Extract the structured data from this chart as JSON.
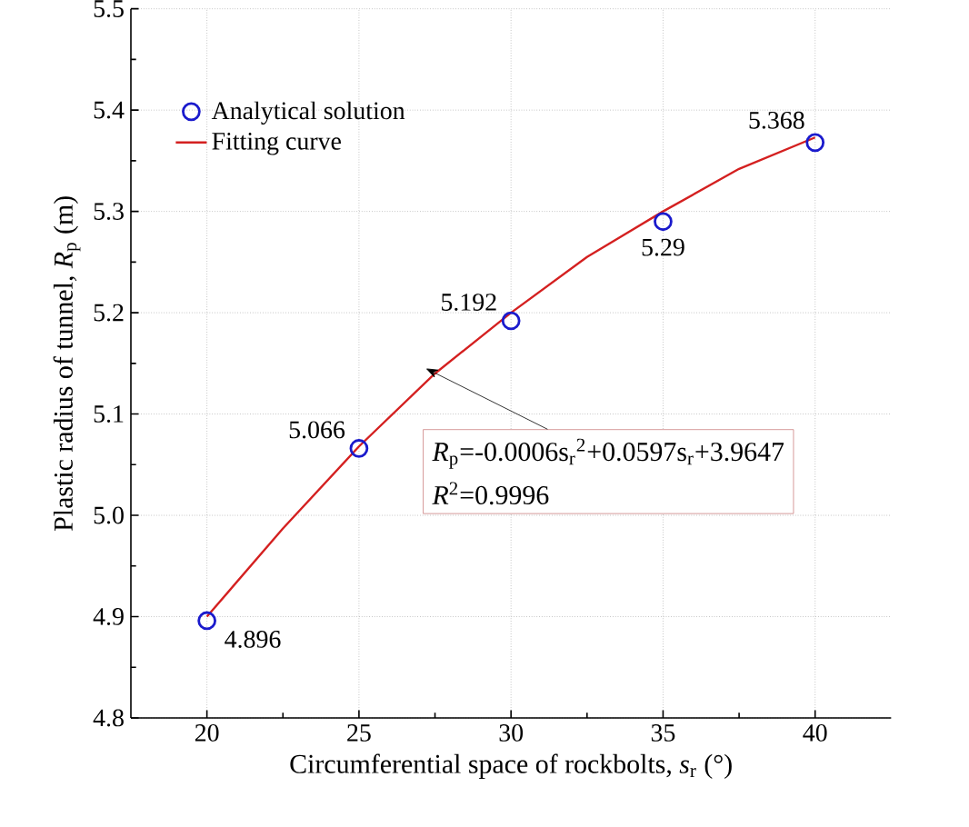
{
  "chart_data": {
    "type": "scatter",
    "xlabel": "Circumferential space of rockbolts, *s*$_{r}$ (°)",
    "ylabel": "Plastic radius of tunnel, *R*$_{p}$ (m)",
    "xlim": [
      17.5,
      42.5
    ],
    "xticks": [
      20,
      25,
      30,
      35,
      40
    ],
    "ylim": [
      4.8,
      5.5
    ],
    "yticks": [
      4.8,
      4.9,
      {
        "value": 5.0,
        "label": "5.0"
      },
      5.1,
      5.2,
      5.3,
      5.4,
      5.5
    ],
    "grid": true,
    "legend": "top left",
    "series": [
      {
        "name": "Analytical solution",
        "type": "scatter",
        "marker": "circle",
        "color": "#1a1acc",
        "x": [
          20,
          25,
          30,
          35,
          40
        ],
        "values": [
          4.896,
          5.066,
          5.192,
          5.29,
          5.368
        ],
        "data_labels": true
      },
      {
        "name": "Fitting curve",
        "type": "line",
        "marker": "none",
        "line_style": "solid",
        "color": "#d42020",
        "x": [
          20,
          22.5,
          25,
          27.5,
          30,
          32.5,
          35,
          37.5,
          40
        ],
        "values": [
          4.9,
          4.987,
          5.068,
          5.14,
          5.2,
          5.255,
          5.3,
          5.342,
          5.373
        ]
      }
    ],
    "annotations": [
      {
        "text": "*R*$_{p}$=-0.0006s$_{r}$$^{2}$+0.0597s$_{r}$+3.9647",
        "x": 27.2,
        "y": 5.145
      },
      "*R*$^{2}$=0.9996"
    ]
  }
}
